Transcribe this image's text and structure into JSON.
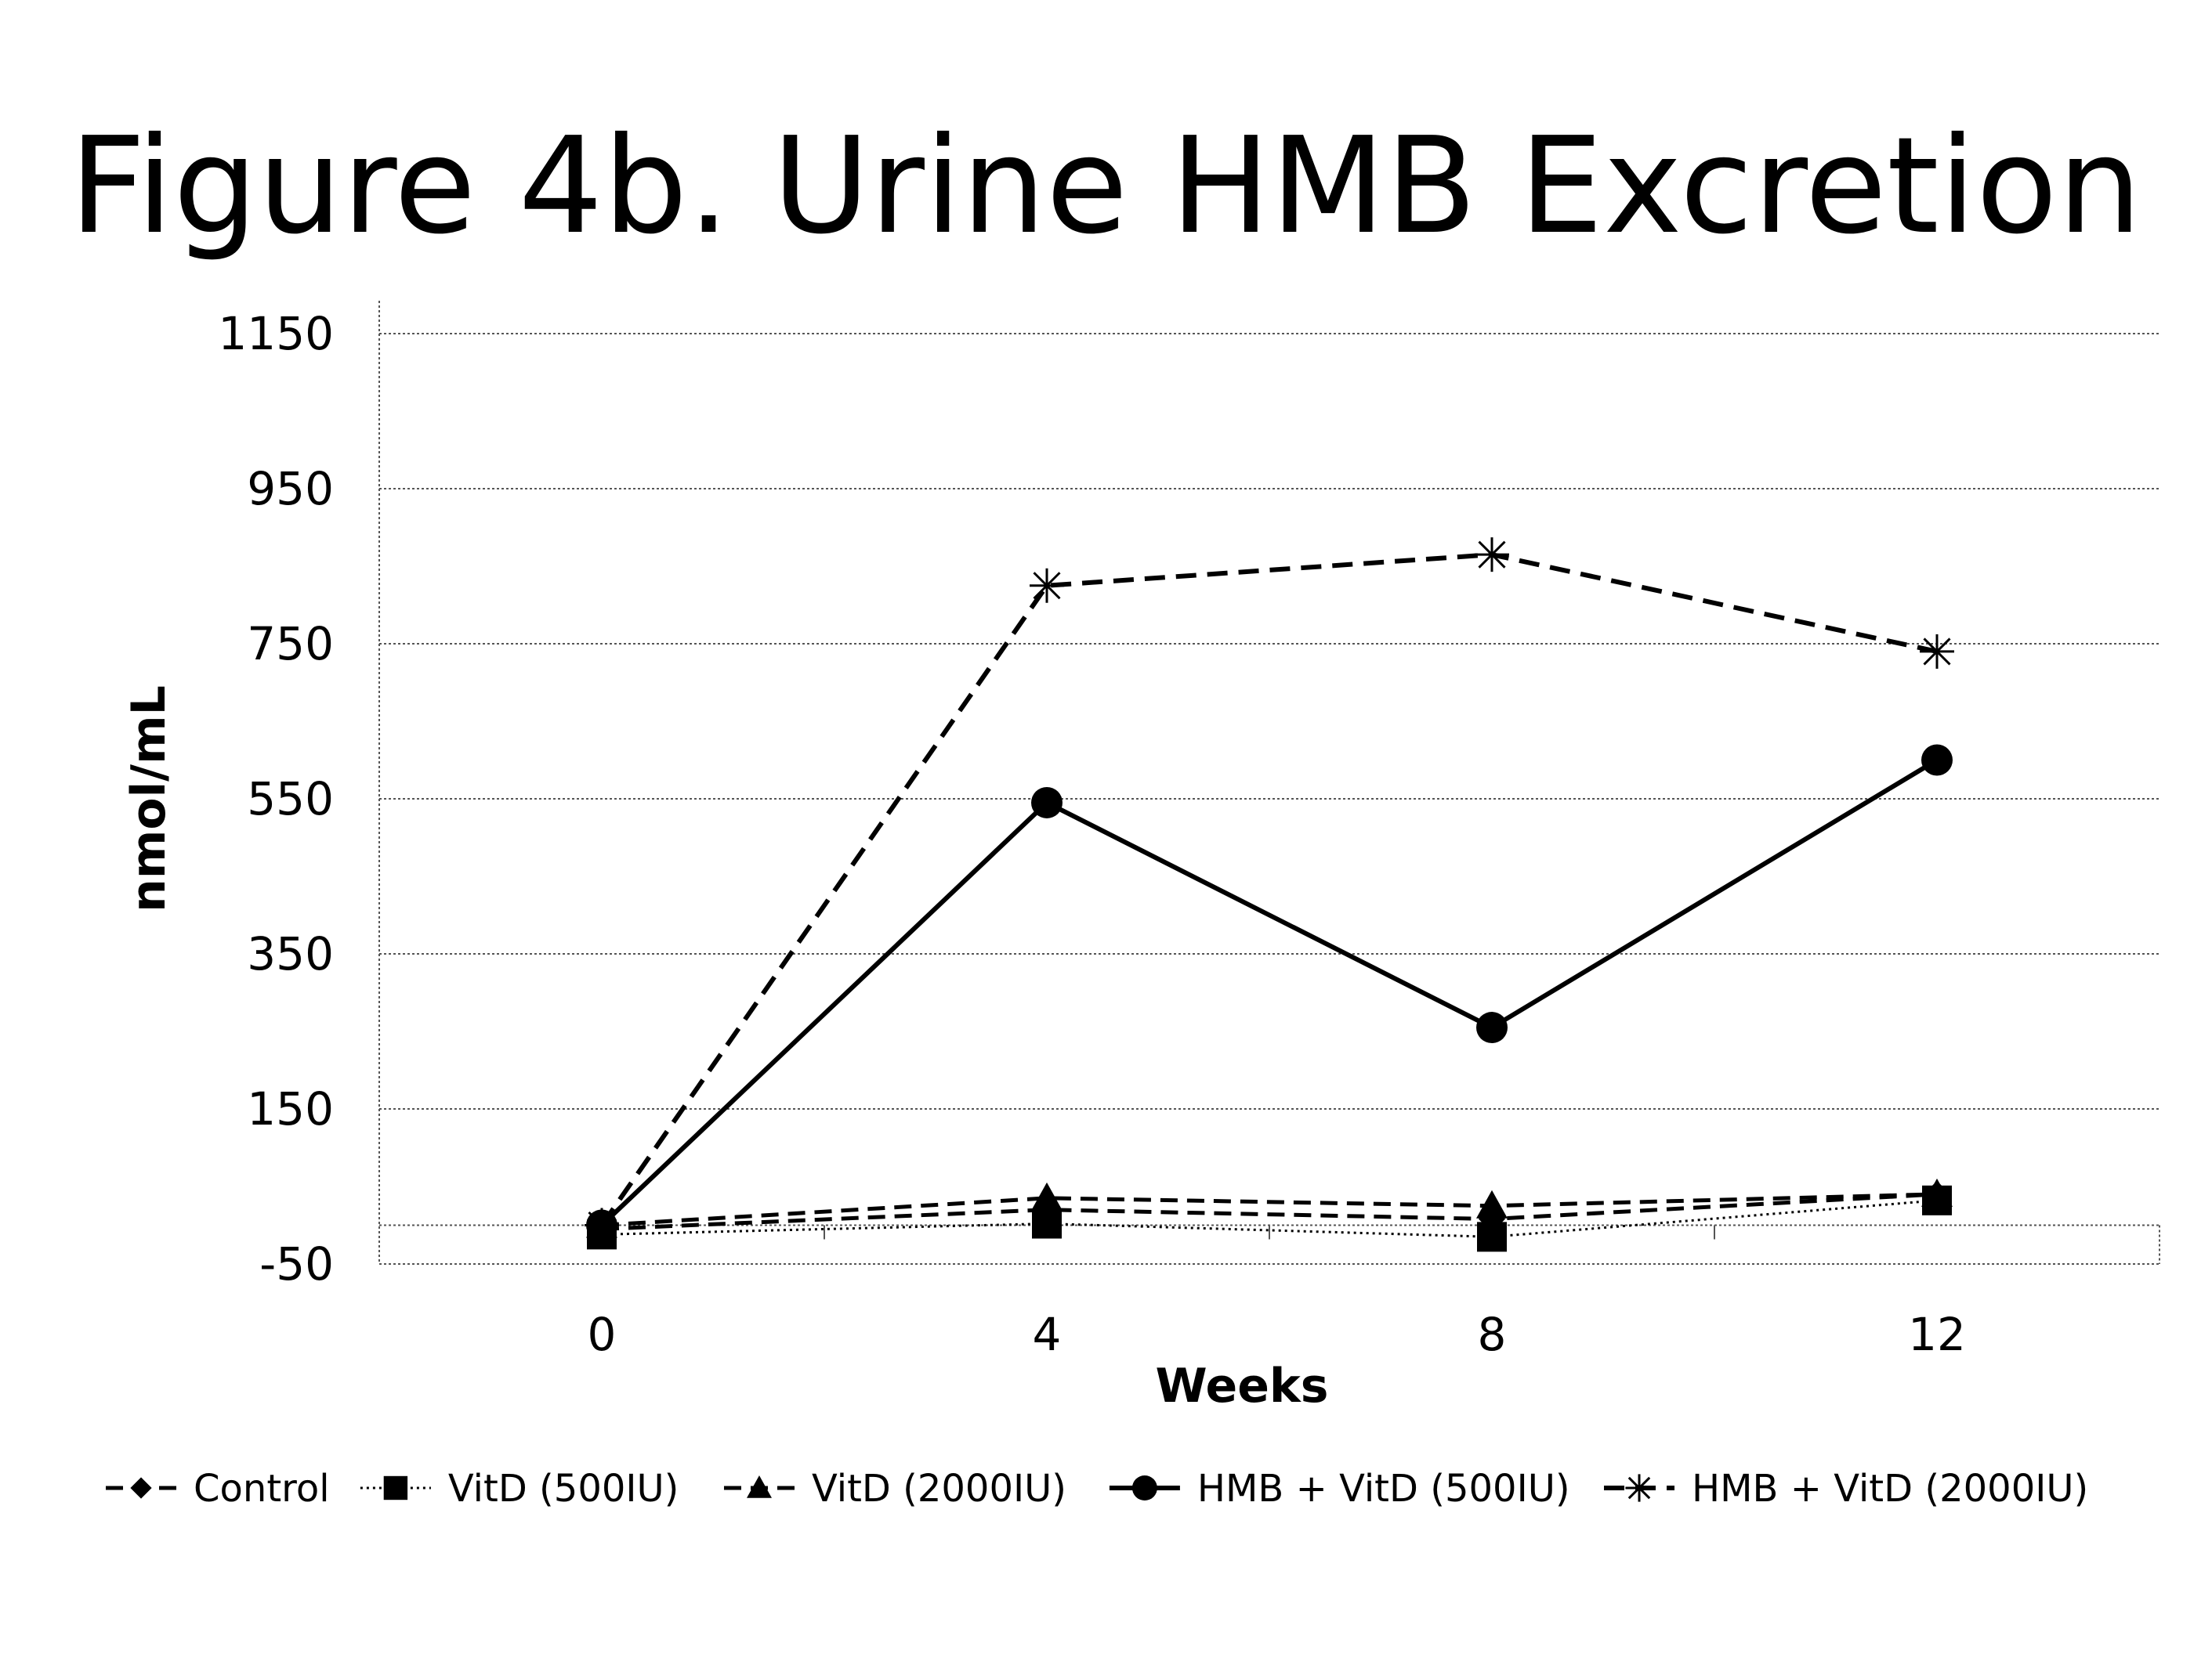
{
  "chart_data": {
    "type": "line",
    "title": "Figure 4b. Urine HMB Excretion",
    "xlabel": "Weeks",
    "ylabel": "nmol/mL",
    "x": [
      0,
      4,
      8,
      12
    ],
    "x_ticks": [
      "0",
      "4",
      "8",
      "12"
    ],
    "y_ticks": [
      "-50",
      "150",
      "350",
      "550",
      "750",
      "950",
      "1150"
    ],
    "ylim": [
      -50,
      1150
    ],
    "xlim": [
      -2,
      14
    ],
    "grid": true,
    "legend_position": "bottom",
    "series": [
      {
        "name": "Control",
        "marker": "diamond",
        "dash": "dash",
        "values": [
          -5,
          20,
          8,
          40
        ]
      },
      {
        "name": "VitD (500IU)",
        "marker": "square",
        "dash": "dot",
        "values": [
          -12,
          2,
          -15,
          32
        ]
      },
      {
        "name": "VitD (2000IU)",
        "marker": "triangle",
        "dash": "dash",
        "values": [
          0,
          35,
          25,
          40
        ]
      },
      {
        "name": "HMB + VitD (500IU)",
        "marker": "circle",
        "dash": "solid",
        "values": [
          0,
          545,
          255,
          600
        ]
      },
      {
        "name": "HMB + VitD (2000IU)",
        "marker": "asterisk",
        "dash": "longdash",
        "values": [
          0,
          825,
          865,
          740
        ]
      }
    ]
  }
}
